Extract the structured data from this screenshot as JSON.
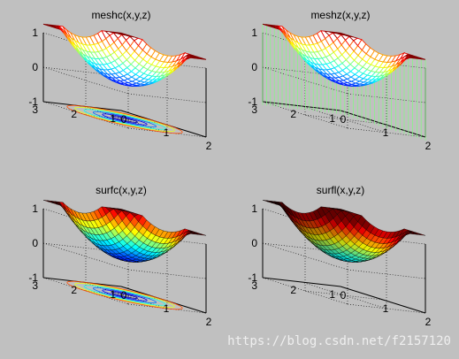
{
  "window": {
    "background": "#c0c0c0"
  },
  "watermark": "https://blog.csdn.net/f2157120",
  "chart_data": [
    {
      "type": "surface",
      "title": "meshc(x,y,z)",
      "style": "mesh-with-contour",
      "function": "z = (x-1)^2 + (y-2)^2",
      "x": [
        0,
        2
      ],
      "y": [
        1,
        3
      ],
      "zlim": [
        -1,
        1
      ],
      "xticks": [
        "0",
        "1",
        "2"
      ],
      "yticks": [
        "1",
        "2",
        "3"
      ],
      "zticks": [
        "-1",
        "0",
        "1"
      ],
      "colormap": "jet",
      "grid": true
    },
    {
      "type": "surface",
      "title": "meshz(x,y,z)",
      "style": "mesh-with-curtain",
      "function": "z = (x-1)^2 + (y-2)^2",
      "x": [
        0,
        2
      ],
      "y": [
        1,
        3
      ],
      "zlim": [
        -1,
        1
      ],
      "xticks": [
        "0",
        "1",
        "2"
      ],
      "yticks": [
        "1",
        "2",
        "3"
      ],
      "zticks": [
        "-1",
        "0",
        "1"
      ],
      "colormap": "jet",
      "grid": true
    },
    {
      "type": "surface",
      "title": "surfc(x,y,z)",
      "style": "surface-with-contour",
      "function": "z = (x-1)^2 + (y-2)^2",
      "x": [
        0,
        2
      ],
      "y": [
        1,
        3
      ],
      "zlim": [
        -1,
        1
      ],
      "xticks": [
        "0",
        "1",
        "2"
      ],
      "yticks": [
        "1",
        "2",
        "3"
      ],
      "zticks": [
        "-1",
        "0",
        "1"
      ],
      "colormap": "jet",
      "grid": true
    },
    {
      "type": "surface",
      "title": "surfl(x,y,z)",
      "style": "lit-surface",
      "function": "z = (x-1)^2 + (y-2)^2",
      "x": [
        0,
        2
      ],
      "y": [
        1,
        3
      ],
      "zlim": [
        -1,
        1
      ],
      "xticks": [
        "0",
        "1",
        "2"
      ],
      "yticks": [
        "1",
        "2",
        "3"
      ],
      "zticks": [
        "-1",
        "0",
        "1"
      ],
      "colormap": "jet",
      "grid": true
    }
  ]
}
